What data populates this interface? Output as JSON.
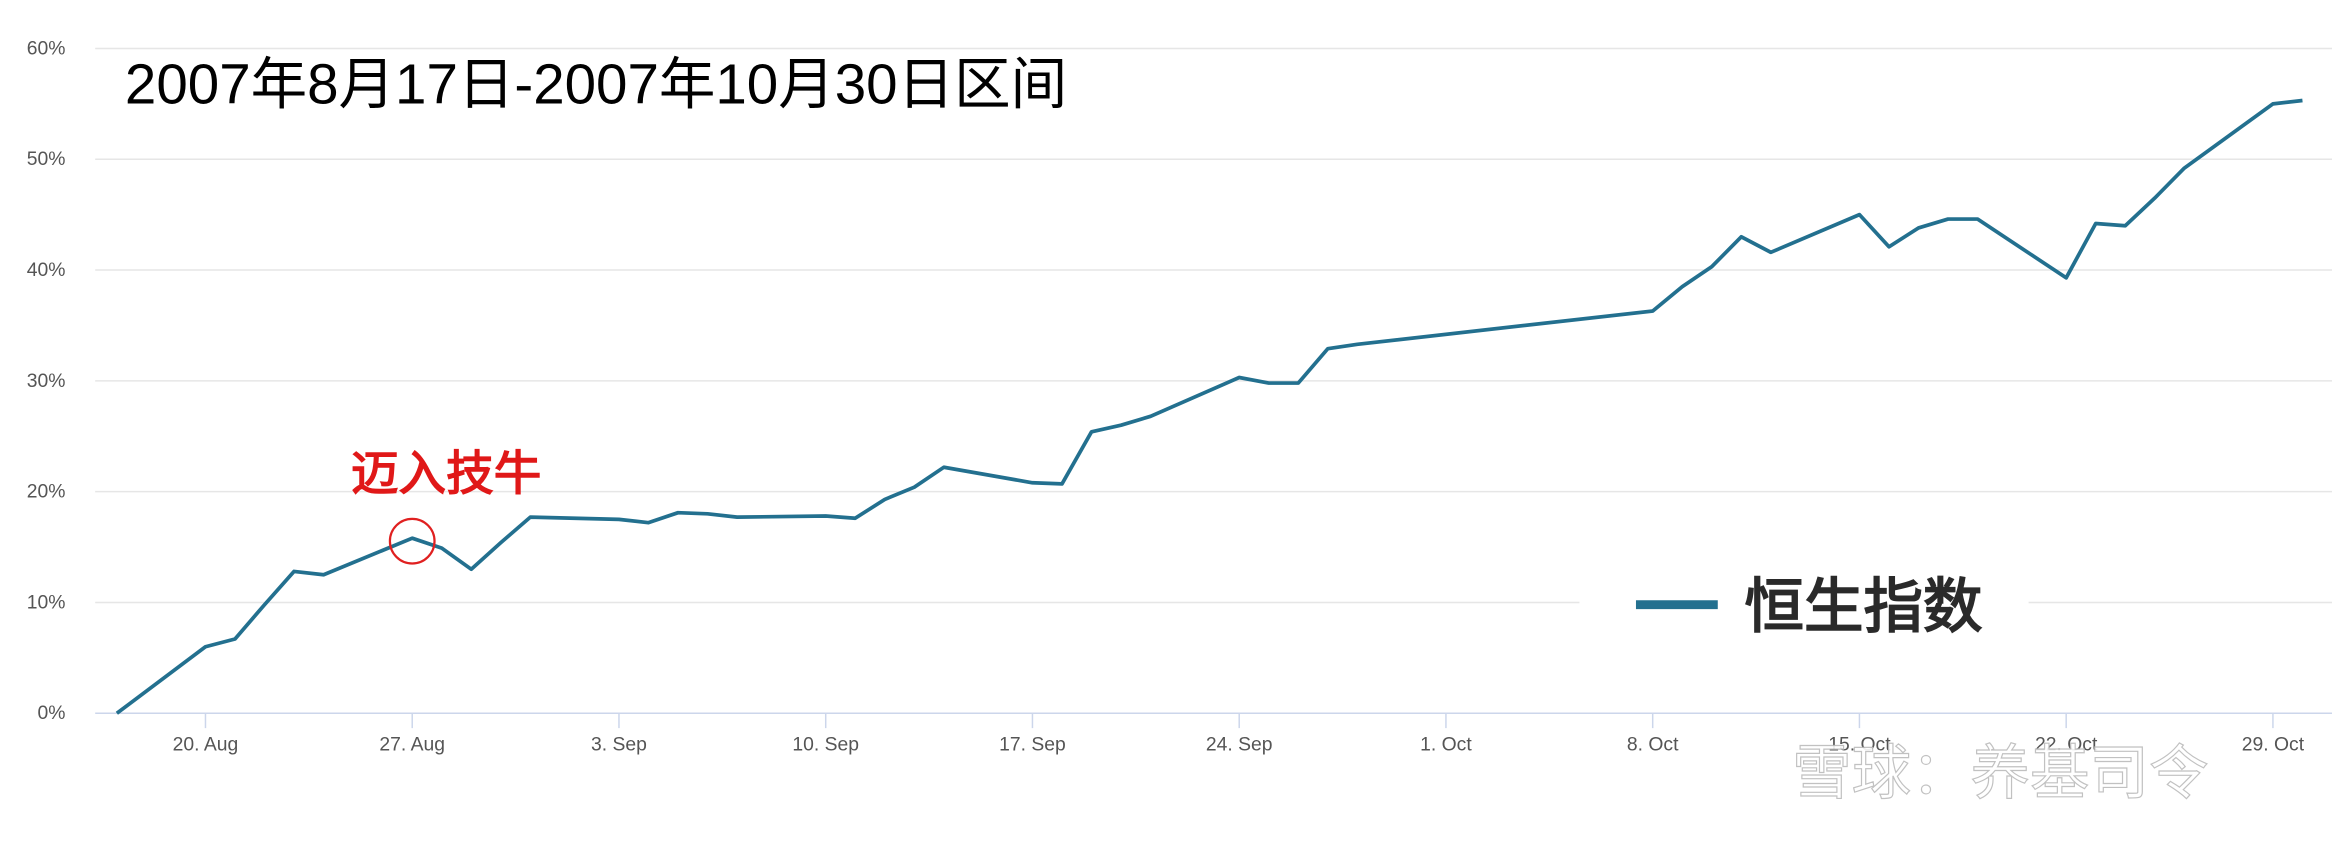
{
  "chart_data": {
    "type": "line",
    "title": "2007年8月17日-2007年10月30日区间",
    "annotation": "迈入技牛",
    "watermark": "雪球：养基司令",
    "x": [
      "2007-08-17",
      "2007-08-20",
      "2007-08-21",
      "2007-08-22",
      "2007-08-23",
      "2007-08-24",
      "2007-08-27",
      "2007-08-28",
      "2007-08-29",
      "2007-08-30",
      "2007-08-31",
      "2007-09-03",
      "2007-09-04",
      "2007-09-05",
      "2007-09-06",
      "2007-09-07",
      "2007-09-10",
      "2007-09-11",
      "2007-09-12",
      "2007-09-13",
      "2007-09-14",
      "2007-09-17",
      "2007-09-18",
      "2007-09-19",
      "2007-09-20",
      "2007-09-21",
      "2007-09-24",
      "2007-09-25",
      "2007-09-26",
      "2007-09-27",
      "2007-09-28",
      "2007-10-08",
      "2007-10-09",
      "2007-10-10",
      "2007-10-11",
      "2007-10-12",
      "2007-10-15",
      "2007-10-16",
      "2007-10-17",
      "2007-10-18",
      "2007-10-19",
      "2007-10-22",
      "2007-10-23",
      "2007-10-24",
      "2007-10-25",
      "2007-10-26",
      "2007-10-29",
      "2007-10-30"
    ],
    "series": [
      {
        "name": "恒生指数",
        "color": "#23708f",
        "values": [
          0,
          6.0,
          6.7,
          9.8,
          12.8,
          12.5,
          15.8,
          14.9,
          13.0,
          15.4,
          17.7,
          17.5,
          17.2,
          18.1,
          18.0,
          17.7,
          17.8,
          17.6,
          19.3,
          20.4,
          22.2,
          20.8,
          20.7,
          25.4,
          26.0,
          26.8,
          30.3,
          29.8,
          29.8,
          32.9,
          33.3,
          36.3,
          38.5,
          40.3,
          43.0,
          41.6,
          45.0,
          42.1,
          43.8,
          44.6,
          44.6,
          39.3,
          44.2,
          44.0,
          46.5,
          49.2,
          55.0,
          55.3
        ]
      }
    ],
    "annotated_point": 6,
    "xlim": [
      "2007-08-14",
      "2007-10-31"
    ],
    "xticks": [
      {
        "value": "2007-08-20",
        "label": "20. Aug"
      },
      {
        "value": "2007-08-27",
        "label": "27. Aug"
      },
      {
        "value": "2007-09-03",
        "label": "3. Sep"
      },
      {
        "value": "2007-09-10",
        "label": "10. Sep"
      },
      {
        "value": "2007-09-17",
        "label": "17. Sep"
      },
      {
        "value": "2007-09-24",
        "label": "24. Sep"
      },
      {
        "value": "2007-10-01",
        "label": "1. Oct"
      },
      {
        "value": "2007-10-08",
        "label": "8. Oct"
      },
      {
        "value": "2007-10-15",
        "label": "15. Oct"
      },
      {
        "value": "2007-10-22",
        "label": "22. Oct"
      },
      {
        "value": "2007-10-29",
        "label": "29. Oct"
      }
    ],
    "ylim": [
      0,
      60
    ],
    "yticks": [
      {
        "value": 0,
        "label": "0%"
      },
      {
        "value": 10,
        "label": "10%"
      },
      {
        "value": 20,
        "label": "20%"
      },
      {
        "value": 30,
        "label": "30%"
      },
      {
        "value": 40,
        "label": "40%"
      },
      {
        "value": 50,
        "label": "50%"
      },
      {
        "value": 60,
        "label": "60%"
      }
    ],
    "grid": true
  }
}
